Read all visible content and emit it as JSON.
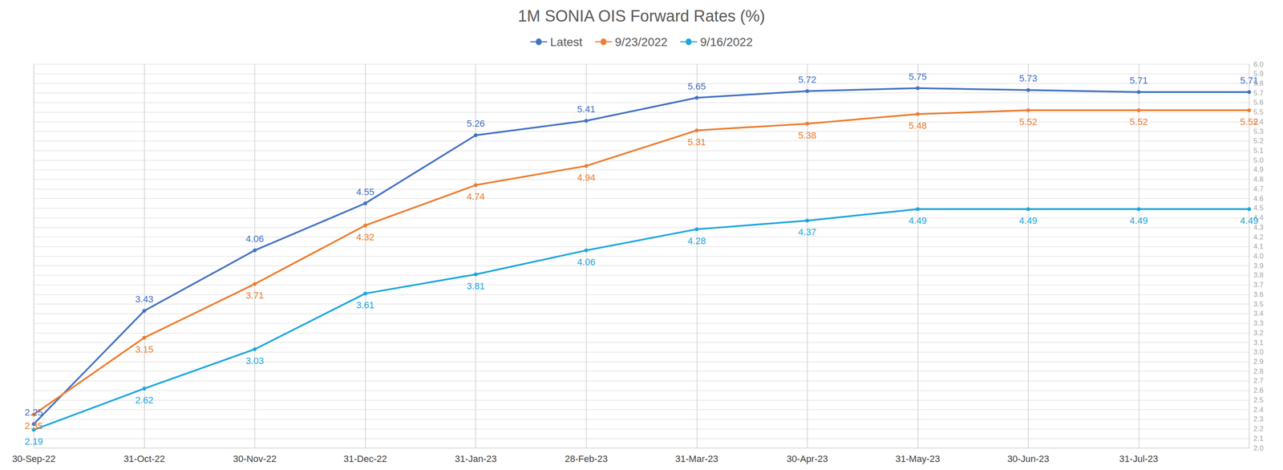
{
  "chart_data": {
    "type": "line",
    "title": "1M SONIA OIS Forward Rates (%)",
    "categories": [
      "30-Sep-22",
      "31-Oct-22",
      "30-Nov-22",
      "31-Dec-22",
      "31-Jan-23",
      "28-Feb-23",
      "31-Mar-23",
      "30-Apr-23",
      "31-May-23",
      "30-Jun-23",
      "31-Jul-23",
      null
    ],
    "series": [
      {
        "name": "Latest",
        "color": "#4472c4",
        "values": [
          2.25,
          3.43,
          4.06,
          4.55,
          5.26,
          5.41,
          5.65,
          5.72,
          5.75,
          5.73,
          5.71,
          5.71
        ]
      },
      {
        "name": "9/23/2022",
        "color": "#ed7d31",
        "values": [
          2.35,
          3.15,
          3.71,
          4.32,
          4.74,
          4.94,
          5.31,
          5.38,
          5.48,
          5.52,
          5.52,
          5.52
        ]
      },
      {
        "name": "9/16/2022",
        "color": "#1ea6dd",
        "values": [
          2.19,
          2.62,
          3.03,
          3.61,
          3.81,
          4.06,
          4.28,
          4.37,
          4.49,
          4.49,
          4.49,
          4.49
        ]
      }
    ],
    "ylim": [
      2,
      6
    ],
    "yticks": [
      {
        "value": 2,
        "label": "2.0"
      },
      2.1,
      2.2,
      2.3,
      2.4,
      2.5,
      2.6,
      2.7,
      2.8,
      2.9,
      {
        "value": 3,
        "label": "3.0"
      },
      3.1,
      3.2,
      3.3,
      3.4,
      3.5,
      3.6,
      3.7,
      3.8,
      3.9,
      {
        "value": 4,
        "label": "4.0"
      },
      4.1,
      4.2,
      4.3,
      4.4,
      4.5,
      4.6,
      4.7,
      4.8,
      4.9,
      {
        "value": 5,
        "label": "5.0"
      },
      5.1,
      5.2,
      5.3,
      5.4,
      5.5,
      5.6,
      5.7,
      5.8,
      5.9,
      {
        "value": 6,
        "label": "6.0"
      }
    ],
    "grid": true,
    "legend": "top",
    "data_labels": true,
    "marker": "circle",
    "line_style": "solid"
  }
}
